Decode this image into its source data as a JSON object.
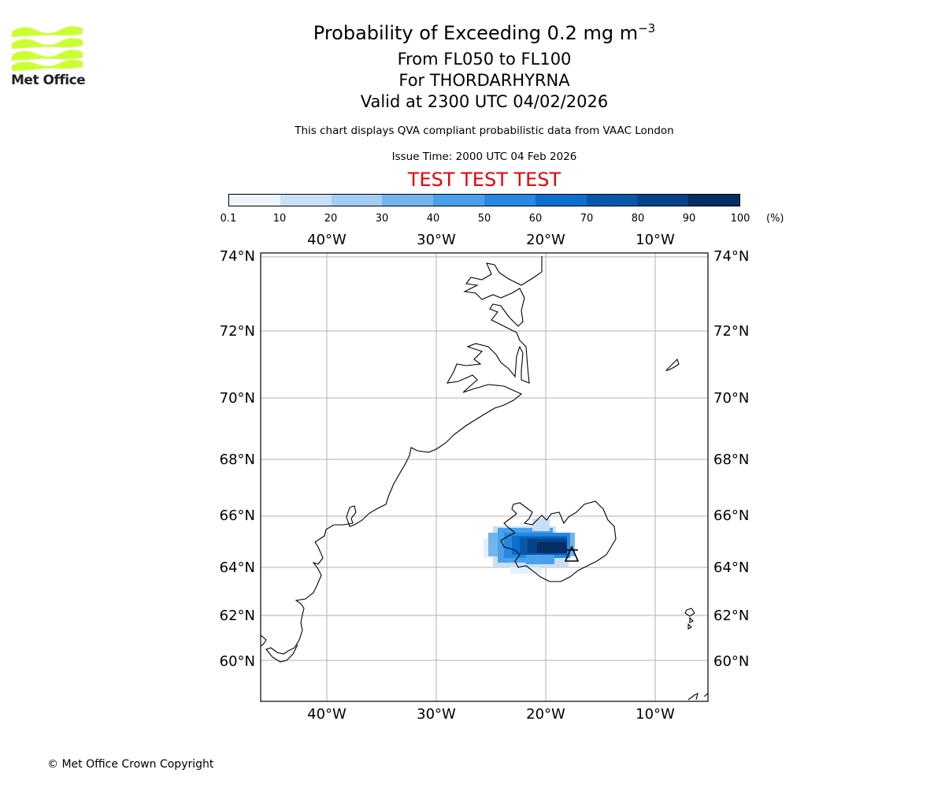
{
  "logo": {
    "text": "Met Office",
    "color": "#ccff33"
  },
  "title": {
    "main": "Probability of Exceeding 0.2 mg m",
    "superscript": "−3"
  },
  "subtitles": [
    "From FL050 to FL100",
    "For THORDARHYRNA",
    "Valid at 2300 UTC 04/02/2026"
  ],
  "description": "This chart displays QVA compliant probabilistic data from VAAC London",
  "issue_time": "Issue Time: 2000 UTC 04 Feb 2026",
  "test_banner": "TEST TEST TEST",
  "colorbar": {
    "unit": "(%)",
    "ticks": [
      "0.1",
      "10",
      "20",
      "30",
      "40",
      "50",
      "60",
      "70",
      "80",
      "90",
      "100"
    ],
    "colors": [
      "#eef5fd",
      "#c8e0f7",
      "#a4cdf3",
      "#73b4ef",
      "#4aa0ea",
      "#2688e2",
      "#0a6fcd",
      "#0858aa",
      "#06448a",
      "#032f64"
    ]
  },
  "map": {
    "lon_labels": [
      "40°W",
      "30°W",
      "20°W",
      "10°W"
    ],
    "lat_labels": [
      "74°N",
      "72°N",
      "70°N",
      "68°N",
      "66°N",
      "64°N",
      "62°N",
      "60°N"
    ],
    "volcano_marker": "volcano-symbol"
  },
  "copyright": "© Met Office Crown Copyright"
}
